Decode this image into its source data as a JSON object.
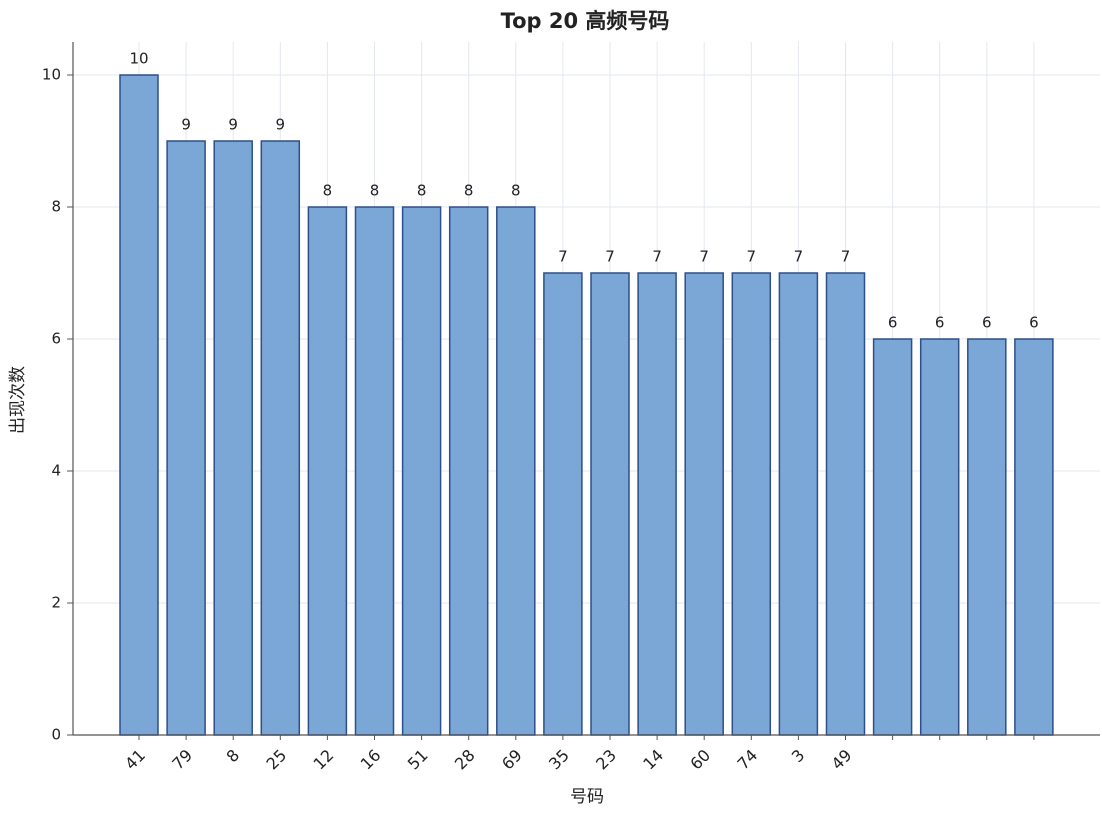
{
  "chart_data": {
    "type": "bar",
    "title": "Top 20 高频号码",
    "x_label": "号码",
    "y_label": "出现次数",
    "categories": [
      "41",
      "79",
      "8",
      "25",
      "12",
      "16",
      "51",
      "28",
      "69",
      "35",
      "23",
      "14",
      "60",
      "74",
      "3",
      "49",
      null,
      null,
      null,
      null
    ],
    "values": [
      10,
      9,
      9,
      9,
      8,
      8,
      8,
      8,
      8,
      7,
      7,
      7,
      7,
      7,
      7,
      7,
      6,
      6,
      6,
      6
    ],
    "color": "#7ba7d6",
    "edge_color": "#2d4f8a",
    "ylim": [
      0,
      10.5
    ],
    "yticks": [
      0,
      2,
      4,
      6,
      8,
      10
    ],
    "grid": true
  }
}
